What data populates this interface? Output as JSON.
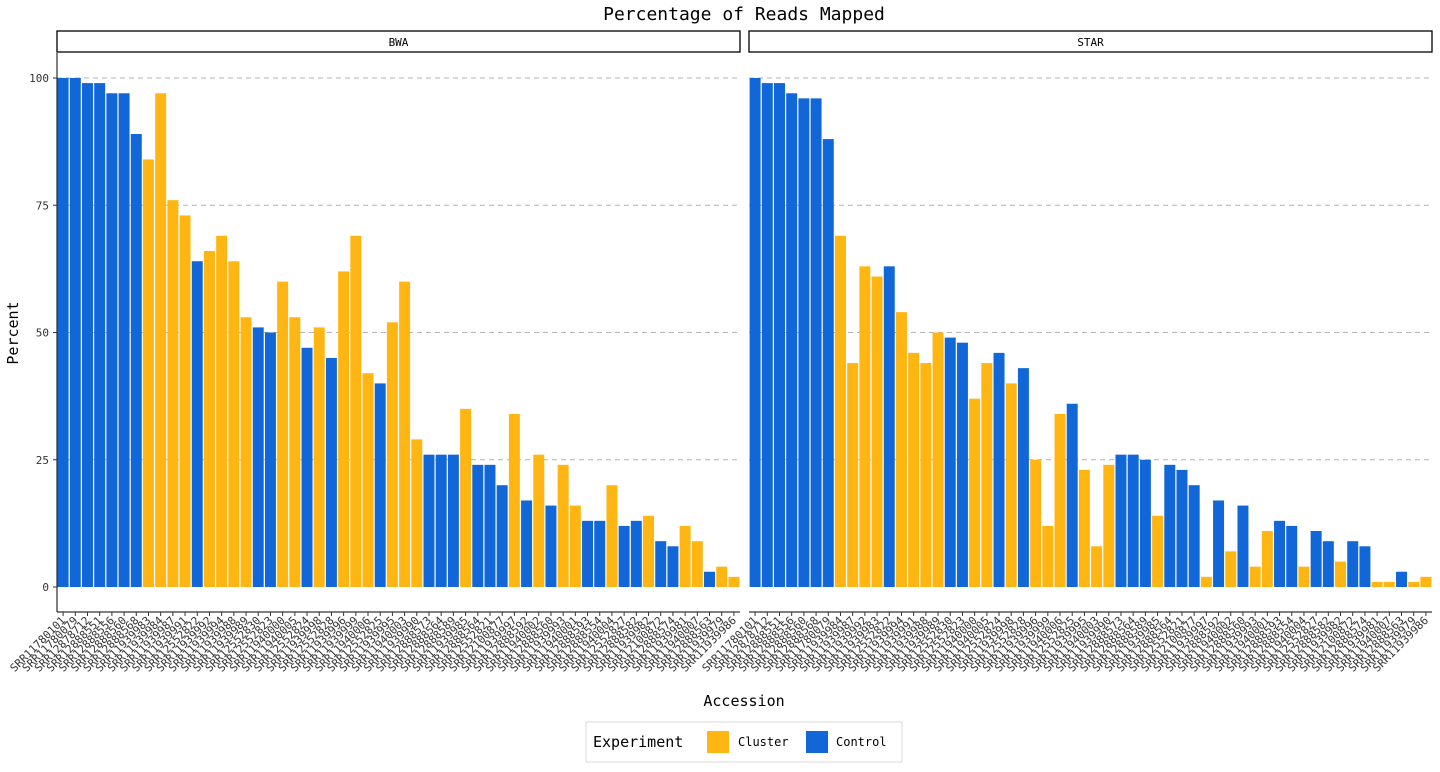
{
  "chart_data": {
    "type": "bar",
    "title": "Percentage of Reads Mapped",
    "xlabel": "Accession",
    "ylabel": "Percent",
    "ylim": [
      0,
      100
    ],
    "yticks": [
      0,
      25,
      50,
      75,
      100
    ],
    "grid": "horizontal dashed major lines",
    "legend": {
      "title": "Experiment",
      "placement": "bottom",
      "items": [
        {
          "name": "Cluster",
          "color": "#FFB612"
        },
        {
          "name": "Control",
          "color": "#1166D8"
        }
      ]
    },
    "panels": [
      {
        "name": "BWA",
        "bars": [
          {
            "acc": "SRR11780101",
            "value": 100,
            "group": "Control"
          },
          {
            "acc": "SRR11780079",
            "value": 100,
            "group": "Control"
          },
          {
            "acc": "SRR12878712",
            "value": 99,
            "group": "Control"
          },
          {
            "acc": "SRR12888551",
            "value": 99,
            "group": "Control"
          },
          {
            "acc": "SRR12888556",
            "value": 97,
            "group": "Control"
          },
          {
            "acc": "SRR12888560",
            "value": 97,
            "group": "Control"
          },
          {
            "acc": "SRR12888568",
            "value": 89,
            "group": "Control"
          },
          {
            "acc": "SRR11939983",
            "value": 84,
            "group": "Cluster"
          },
          {
            "acc": "SRR11939984",
            "value": 97,
            "group": "Cluster"
          },
          {
            "acc": "SRR11939987",
            "value": 76,
            "group": "Cluster"
          },
          {
            "acc": "SRR11939991",
            "value": 73,
            "group": "Cluster"
          },
          {
            "acc": "SRR12552822",
            "value": 64,
            "group": "Control"
          },
          {
            "acc": "SRR11939992",
            "value": 66,
            "group": "Cluster"
          },
          {
            "acc": "SRR11939994",
            "value": 69,
            "group": "Cluster"
          },
          {
            "acc": "SRR11939988",
            "value": 64,
            "group": "Cluster"
          },
          {
            "acc": "SRR11939989",
            "value": 53,
            "group": "Cluster"
          },
          {
            "acc": "SRR12552830",
            "value": 51,
            "group": "Control"
          },
          {
            "acc": "SRR12552823",
            "value": 50,
            "group": "Control"
          },
          {
            "acc": "SRR11940000",
            "value": 60,
            "group": "Cluster"
          },
          {
            "acc": "SRR11940005",
            "value": 53,
            "group": "Cluster"
          },
          {
            "acc": "SRR12552824",
            "value": 47,
            "group": "Control"
          },
          {
            "acc": "SRR11939998",
            "value": 51,
            "group": "Cluster"
          },
          {
            "acc": "SRR12552828",
            "value": 45,
            "group": "Control"
          },
          {
            "acc": "SRR11939996",
            "value": 62,
            "group": "Cluster"
          },
          {
            "acc": "SRR11939999",
            "value": 69,
            "group": "Cluster"
          },
          {
            "acc": "SRR11940006",
            "value": 42,
            "group": "Cluster"
          },
          {
            "acc": "SRR12552825",
            "value": 40,
            "group": "Control"
          },
          {
            "acc": "SRR11939995",
            "value": 52,
            "group": "Cluster"
          },
          {
            "acc": "SRR11940003",
            "value": 60,
            "group": "Cluster"
          },
          {
            "acc": "SRR11939990",
            "value": 29,
            "group": "Cluster"
          },
          {
            "acc": "SRR12888573",
            "value": 26,
            "group": "Control"
          },
          {
            "acc": "SRR12888564",
            "value": 26,
            "group": "Control"
          },
          {
            "acc": "SRR12888589",
            "value": 26,
            "group": "Control"
          },
          {
            "acc": "SRR11939985",
            "value": 35,
            "group": "Cluster"
          },
          {
            "acc": "SRR12888564",
            "value": 24,
            "group": "Control"
          },
          {
            "acc": "SRR12552821",
            "value": 24,
            "group": "Control"
          },
          {
            "acc": "SRR12100877",
            "value": 20,
            "group": "Control"
          },
          {
            "acc": "SRR11939997",
            "value": 34,
            "group": "Cluster"
          },
          {
            "acc": "SRR12888592",
            "value": 17,
            "group": "Control"
          },
          {
            "acc": "SRR11940002",
            "value": 26,
            "group": "Cluster"
          },
          {
            "acc": "SRR12888560",
            "value": 16,
            "group": "Control"
          },
          {
            "acc": "SRR11939993",
            "value": 24,
            "group": "Cluster"
          },
          {
            "acc": "SRR11940001",
            "value": 16,
            "group": "Cluster"
          },
          {
            "acc": "SRR12888593",
            "value": 13,
            "group": "Control"
          },
          {
            "acc": "SRR12888554",
            "value": 13,
            "group": "Control"
          },
          {
            "acc": "SRR11940004",
            "value": 20,
            "group": "Cluster"
          },
          {
            "acc": "SRR12552827",
            "value": 12,
            "group": "Control"
          },
          {
            "acc": "SRR12888582",
            "value": 13,
            "group": "Control"
          },
          {
            "acc": "SRR11939982",
            "value": 14,
            "group": "Cluster"
          },
          {
            "acc": "SRR12100872",
            "value": 9,
            "group": "Control"
          },
          {
            "acc": "SRR12888574",
            "value": 8,
            "group": "Control"
          },
          {
            "acc": "SRR11939981",
            "value": 12,
            "group": "Cluster"
          },
          {
            "acc": "SRR11940007",
            "value": 9,
            "group": "Cluster"
          },
          {
            "acc": "SRR12888563",
            "value": 3,
            "group": "Control"
          },
          {
            "acc": "SRR11939979",
            "value": 4,
            "group": "Cluster"
          },
          {
            "acc": "SRR11939986",
            "value": 2,
            "group": "Cluster"
          }
        ]
      },
      {
        "name": "STAR",
        "bars": [
          {
            "acc": "SRR11780101",
            "value": 100,
            "group": "Control"
          },
          {
            "acc": "SRR12878712",
            "value": 99,
            "group": "Control"
          },
          {
            "acc": "SRR12888551",
            "value": 99,
            "group": "Control"
          },
          {
            "acc": "SRR12888556",
            "value": 97,
            "group": "Control"
          },
          {
            "acc": "SRR12888560",
            "value": 96,
            "group": "Control"
          },
          {
            "acc": "SRR12888568",
            "value": 96,
            "group": "Control"
          },
          {
            "acc": "SRR11780079",
            "value": 88,
            "group": "Control"
          },
          {
            "acc": "SRR11939984",
            "value": 69,
            "group": "Cluster"
          },
          {
            "acc": "SRR11939987",
            "value": 44,
            "group": "Cluster"
          },
          {
            "acc": "SRR11939992",
            "value": 63,
            "group": "Cluster"
          },
          {
            "acc": "SRR11939983",
            "value": 61,
            "group": "Cluster"
          },
          {
            "acc": "SRR12552822",
            "value": 63,
            "group": "Control"
          },
          {
            "acc": "SRR11939994",
            "value": 54,
            "group": "Cluster"
          },
          {
            "acc": "SRR11939991",
            "value": 46,
            "group": "Cluster"
          },
          {
            "acc": "SRR11939988",
            "value": 44,
            "group": "Cluster"
          },
          {
            "acc": "SRR11939989",
            "value": 50,
            "group": "Cluster"
          },
          {
            "acc": "SRR12552830",
            "value": 49,
            "group": "Control"
          },
          {
            "acc": "SRR12552823",
            "value": 48,
            "group": "Control"
          },
          {
            "acc": "SRR11940000",
            "value": 37,
            "group": "Cluster"
          },
          {
            "acc": "SRR11940005",
            "value": 44,
            "group": "Cluster"
          },
          {
            "acc": "SRR12552824",
            "value": 46,
            "group": "Control"
          },
          {
            "acc": "SRR11939998",
            "value": 40,
            "group": "Cluster"
          },
          {
            "acc": "SRR12552828",
            "value": 43,
            "group": "Control"
          },
          {
            "acc": "SRR11939996",
            "value": 25,
            "group": "Cluster"
          },
          {
            "acc": "SRR11939999",
            "value": 12,
            "group": "Cluster"
          },
          {
            "acc": "SRR11940006",
            "value": 34,
            "group": "Cluster"
          },
          {
            "acc": "SRR12552825",
            "value": 36,
            "group": "Control"
          },
          {
            "acc": "SRR11939995",
            "value": 23,
            "group": "Cluster"
          },
          {
            "acc": "SRR11940003",
            "value": 8,
            "group": "Cluster"
          },
          {
            "acc": "SRR11939990",
            "value": 24,
            "group": "Cluster"
          },
          {
            "acc": "SRR12888573",
            "value": 26,
            "group": "Control"
          },
          {
            "acc": "SRR12888564",
            "value": 26,
            "group": "Control"
          },
          {
            "acc": "SRR12888589",
            "value": 25,
            "group": "Control"
          },
          {
            "acc": "SRR11939985",
            "value": 14,
            "group": "Cluster"
          },
          {
            "acc": "SRR12888564",
            "value": 24,
            "group": "Control"
          },
          {
            "acc": "SRR12552821",
            "value": 23,
            "group": "Control"
          },
          {
            "acc": "SRR12100877",
            "value": 20,
            "group": "Control"
          },
          {
            "acc": "SRR11939997",
            "value": 2,
            "group": "Cluster"
          },
          {
            "acc": "SRR12888592",
            "value": 17,
            "group": "Control"
          },
          {
            "acc": "SRR11940002",
            "value": 7,
            "group": "Cluster"
          },
          {
            "acc": "SRR12888560",
            "value": 16,
            "group": "Control"
          },
          {
            "acc": "SRR11939993",
            "value": 4,
            "group": "Cluster"
          },
          {
            "acc": "SRR11940001",
            "value": 11,
            "group": "Cluster"
          },
          {
            "acc": "SRR12888593",
            "value": 13,
            "group": "Control"
          },
          {
            "acc": "SRR12888554",
            "value": 12,
            "group": "Control"
          },
          {
            "acc": "SRR11940004",
            "value": 4,
            "group": "Cluster"
          },
          {
            "acc": "SRR12552827",
            "value": 11,
            "group": "Control"
          },
          {
            "acc": "SRR12888582",
            "value": 9,
            "group": "Control"
          },
          {
            "acc": "SRR11939982",
            "value": 5,
            "group": "Cluster"
          },
          {
            "acc": "SRR12100872",
            "value": 9,
            "group": "Control"
          },
          {
            "acc": "SRR12888574",
            "value": 8,
            "group": "Control"
          },
          {
            "acc": "SRR11939981",
            "value": 1,
            "group": "Cluster"
          },
          {
            "acc": "SRR11940007",
            "value": 1,
            "group": "Cluster"
          },
          {
            "acc": "SRR12888563",
            "value": 3,
            "group": "Control"
          },
          {
            "acc": "SRR11939979",
            "value": 1,
            "group": "Cluster"
          },
          {
            "acc": "SRR11939986",
            "value": 2,
            "group": "Cluster"
          }
        ]
      }
    ]
  }
}
